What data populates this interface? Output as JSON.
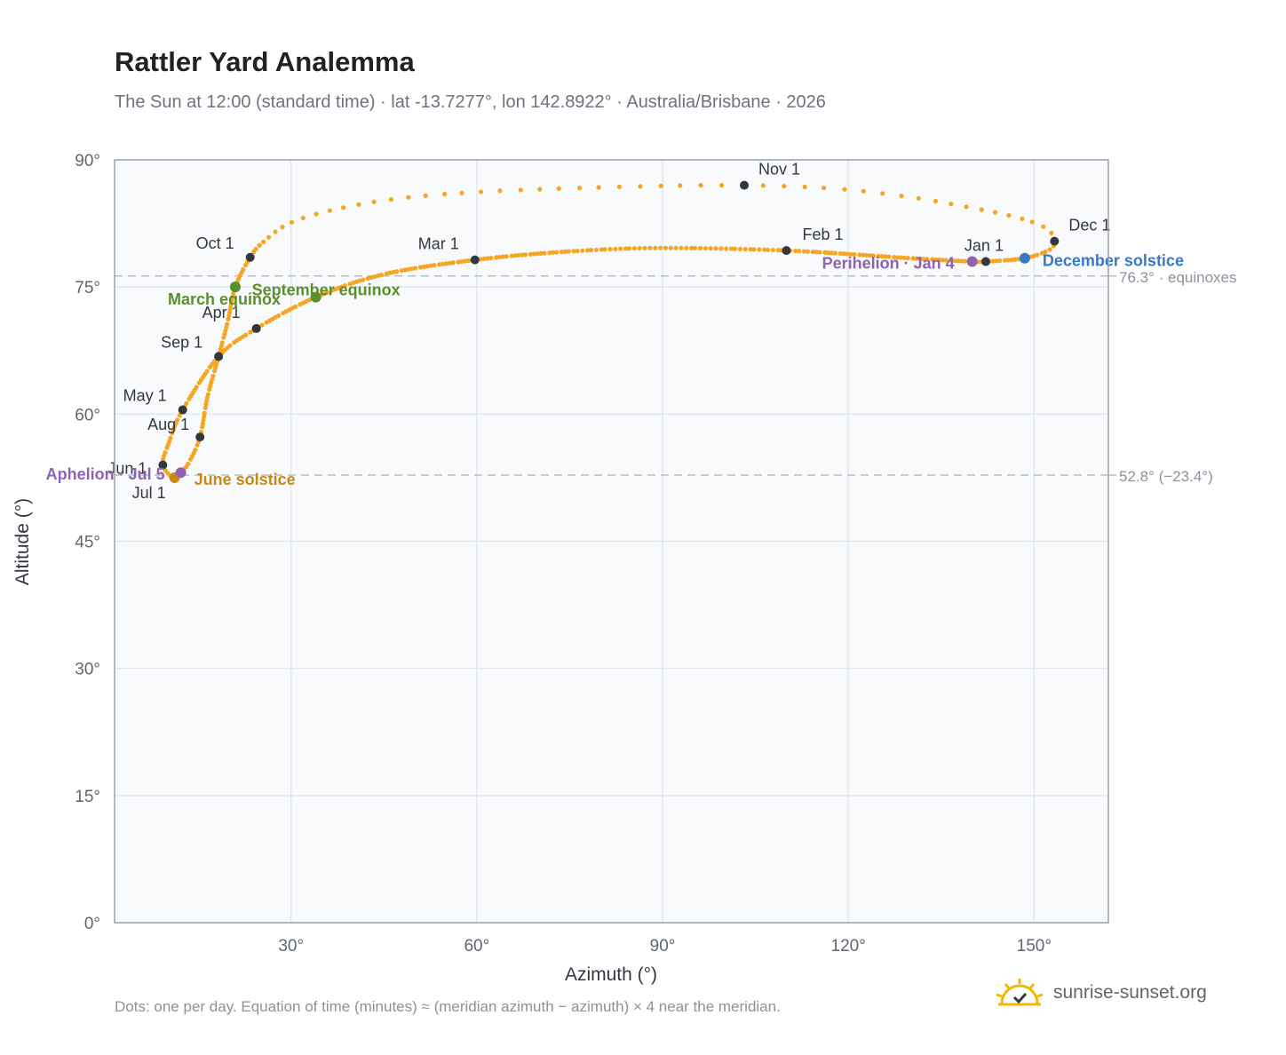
{
  "header": {
    "title": "Rattler Yard Analemma",
    "subtitle": "The Sun at 12:00 (standard time) · lat -13.7277°, lon 142.8922° · Australia/Brisbane · 2026"
  },
  "footer": {
    "note": "Dots: one per day. Equation of time (minutes) ≈ (meridian azimuth − azimuth) × 4 near the meridian.",
    "brand": "sunrise-sunset.org",
    "brand_icon": "sun-check-icon"
  },
  "colors": {
    "curve": "#f5a623",
    "month_marker": "#333840",
    "equinox": "#5a8f2e",
    "june_solstice": "#c98a12",
    "december_solstice": "#3b78c2",
    "perihelion_aphelion": "#8e63b0",
    "reference_line": "#b8bec6",
    "plot_background": "#f8fafc"
  },
  "chart_data": {
    "type": "scatter",
    "xlabel": "Azimuth (°)",
    "ylabel": "Altitude (°)",
    "xlim": [
      1.5,
      162
    ],
    "ylim": [
      0,
      90
    ],
    "x_ticks": [
      30,
      60,
      90,
      120,
      150
    ],
    "x_tick_labels": [
      "30°",
      "60°",
      "90°",
      "120°",
      "150°"
    ],
    "y_ticks": [
      0,
      15,
      30,
      45,
      60,
      75,
      90
    ],
    "y_tick_labels": [
      "0°",
      "15°",
      "30°",
      "45°",
      "60°",
      "75°",
      "90°"
    ],
    "grid": true,
    "reference_lines": [
      {
        "y": 76.3,
        "label": "76.3° · equinoxes"
      },
      {
        "y": 52.8,
        "label": "52.8° (−23.4°)"
      }
    ],
    "curve_waypoints": [
      {
        "x": 142.2,
        "y": 78.0
      },
      {
        "x": 148.5,
        "y": 78.4
      },
      {
        "x": 152.5,
        "y": 79.4
      },
      {
        "x": 153.3,
        "y": 80.4
      },
      {
        "x": 152.5,
        "y": 81.6
      },
      {
        "x": 150.0,
        "y": 82.6
      },
      {
        "x": 145.0,
        "y": 83.6
      },
      {
        "x": 138.0,
        "y": 84.6
      },
      {
        "x": 130.0,
        "y": 85.6
      },
      {
        "x": 118.0,
        "y": 86.6
      },
      {
        "x": 103.2,
        "y": 87.0
      },
      {
        "x": 88.0,
        "y": 86.9
      },
      {
        "x": 73.0,
        "y": 86.6
      },
      {
        "x": 60.0,
        "y": 86.2
      },
      {
        "x": 48.0,
        "y": 85.5
      },
      {
        "x": 38.0,
        "y": 84.3
      },
      {
        "x": 30.0,
        "y": 82.6
      },
      {
        "x": 25.5,
        "y": 80.3
      },
      {
        "x": 23.4,
        "y": 78.5
      },
      {
        "x": 21.0,
        "y": 75.0
      },
      {
        "x": 19.8,
        "y": 71.0
      },
      {
        "x": 18.3,
        "y": 66.8
      },
      {
        "x": 16.5,
        "y": 62.0
      },
      {
        "x": 15.3,
        "y": 57.3
      },
      {
        "x": 13.5,
        "y": 54.3
      },
      {
        "x": 12.2,
        "y": 53.1
      },
      {
        "x": 11.2,
        "y": 52.4
      },
      {
        "x": 9.3,
        "y": 54.0
      },
      {
        "x": 10.2,
        "y": 56.5
      },
      {
        "x": 12.5,
        "y": 60.5
      },
      {
        "x": 18.3,
        "y": 66.8
      },
      {
        "x": 24.4,
        "y": 70.1
      },
      {
        "x": 34.0,
        "y": 73.8
      },
      {
        "x": 45.0,
        "y": 76.5
      },
      {
        "x": 59.7,
        "y": 78.2
      },
      {
        "x": 75.0,
        "y": 79.2
      },
      {
        "x": 90.0,
        "y": 79.6
      },
      {
        "x": 110.0,
        "y": 79.3
      },
      {
        "x": 130.0,
        "y": 78.4
      },
      {
        "x": 140.0,
        "y": 78.0
      },
      {
        "x": 142.2,
        "y": 78.0
      }
    ],
    "month_markers": [
      {
        "label": "Jan 1",
        "x": 142.2,
        "y": 78.0
      },
      {
        "label": "Feb 1",
        "x": 110.0,
        "y": 79.3
      },
      {
        "label": "Mar 1",
        "x": 59.7,
        "y": 78.2
      },
      {
        "label": "Apr 1",
        "x": 24.4,
        "y": 70.1
      },
      {
        "label": "May 1",
        "x": 12.5,
        "y": 60.5
      },
      {
        "label": "Jun 1",
        "x": 9.3,
        "y": 54.0
      },
      {
        "label": "Jul 1",
        "x": 11.2,
        "y": 52.4
      },
      {
        "label": "Aug 1",
        "x": 15.3,
        "y": 57.3
      },
      {
        "label": "Sep 1",
        "x": 18.3,
        "y": 66.8
      },
      {
        "label": "Oct 1",
        "x": 23.4,
        "y": 78.5
      },
      {
        "label": "Nov 1",
        "x": 103.2,
        "y": 87.0
      },
      {
        "label": "Dec 1",
        "x": 153.3,
        "y": 80.4
      }
    ],
    "events": [
      {
        "label": "March equinox",
        "x": 21.0,
        "y": 75.0,
        "kind": "equinox"
      },
      {
        "label": "September equinox",
        "x": 34.0,
        "y": 73.8,
        "kind": "equinox"
      },
      {
        "label": "June solstice",
        "x": 11.2,
        "y": 52.5,
        "kind": "june"
      },
      {
        "label": "December solstice",
        "x": 148.5,
        "y": 78.4,
        "kind": "december"
      },
      {
        "label": "Perihelion · Jan 4",
        "x": 140.0,
        "y": 78.0,
        "kind": "apsis"
      },
      {
        "label": "Aphelion · Jul 5",
        "x": 12.2,
        "y": 53.1,
        "kind": "apsis"
      }
    ]
  }
}
